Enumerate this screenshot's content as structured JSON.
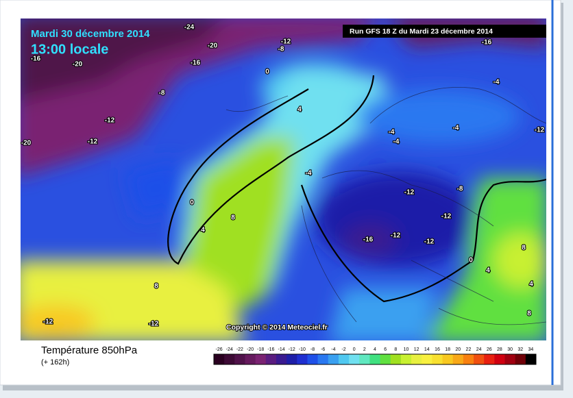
{
  "header": {
    "date": "Mardi 30 décembre 2014",
    "time": "13:00 locale",
    "run": "Run GFS 18 Z du Mardi 23 décembre 2014"
  },
  "map": {
    "copyright": "Copyright © 2014 Meteociel.fr",
    "contour_labels": [
      "-24",
      "-20",
      "-12",
      "-8",
      "-16",
      "-20",
      "-16",
      "0",
      "-8",
      "4",
      "-12",
      "-12",
      "-20",
      "-16",
      "-4",
      "-4",
      "-4",
      "-4",
      "-12",
      "-4",
      "-12",
      "-8",
      "-12",
      "-16",
      "-12",
      "-12",
      "0",
      "4",
      "8",
      "0",
      "4",
      "4",
      "8",
      "8",
      "8",
      "-12",
      "-12"
    ]
  },
  "legend": {
    "title": "Température 850hPa",
    "lead": "(+ 162h)",
    "colorbar": {
      "values": [
        -26,
        -24,
        -22,
        -20,
        -18,
        -16,
        -14,
        -12,
        -10,
        -8,
        -6,
        -4,
        -2,
        0,
        2,
        4,
        6,
        8,
        10,
        12,
        14,
        16,
        18,
        20,
        22,
        24,
        26,
        28,
        30,
        32,
        34
      ],
      "colors": [
        "#2a0020",
        "#3d0a35",
        "#50124a",
        "#661a5e",
        "#7a2272",
        "#5a1c80",
        "#3a1a90",
        "#1e1ea8",
        "#1f2fd0",
        "#1f50e8",
        "#2a78f0",
        "#3aa0f0",
        "#50c8f0",
        "#70e0f0",
        "#60e8c0",
        "#40e080",
        "#60e040",
        "#a0e020",
        "#c8f030",
        "#e8f040",
        "#f8f040",
        "#f8e030",
        "#f8c820",
        "#f8a818",
        "#f88010",
        "#f05010",
        "#e82010",
        "#d00010",
        "#a00010",
        "#700008",
        "#000000"
      ]
    }
  }
}
